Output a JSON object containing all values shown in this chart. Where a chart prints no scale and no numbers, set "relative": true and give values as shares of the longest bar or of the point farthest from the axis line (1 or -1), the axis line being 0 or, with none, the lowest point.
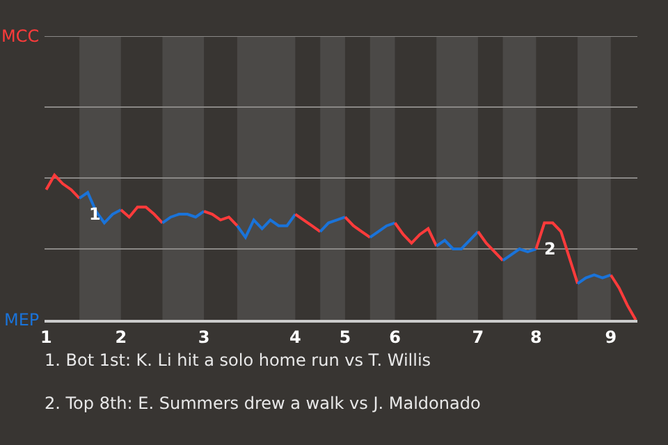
{
  "chart_data": {
    "type": "line",
    "relative": true,
    "categories": [
      "1",
      null,
      null,
      null,
      null,
      null,
      null,
      null,
      null,
      "2",
      null,
      null,
      null,
      null,
      null,
      null,
      null,
      null,
      null,
      "3",
      null,
      null,
      null,
      null,
      null,
      null,
      null,
      null,
      null,
      null,
      "4",
      null,
      null,
      null,
      null,
      null,
      "5",
      null,
      null,
      null,
      null,
      null,
      "6",
      null,
      null,
      null,
      null,
      null,
      null,
      null,
      null,
      null,
      "7",
      null,
      null,
      null,
      null,
      null,
      null,
      "8",
      null,
      null,
      null,
      null,
      null,
      null,
      null,
      null,
      "9",
      null,
      null,
      null
    ],
    "marker": "none",
    "ref_lines": [
      {
        "axis": "y",
        "value": 0.49,
        "color": "#8a8886"
      },
      {
        "axis": "y",
        "value": 0.98,
        "color": "#8a8886"
      },
      {
        "axis": "y",
        "value": 1.47,
        "color": "#8a8886"
      },
      {
        "axis": "y",
        "value": 1.96,
        "color": "#8a8886"
      }
    ],
    "line_style": "solid",
    "series": [
      {
        "color": "#ff3b3b",
        "values": [
          0.9,
          1,
          0.94,
          0.9,
          0.84,
          null,
          null,
          null,
          null,
          null,
          null,
          null,
          null,
          null,
          null,
          null,
          null,
          null,
          null,
          null,
          null,
          null,
          null,
          null,
          null,
          null,
          null,
          null,
          null,
          null,
          null,
          null,
          null,
          null,
          null,
          null,
          null,
          null,
          null,
          null,
          null,
          null,
          null,
          null,
          null,
          null,
          null,
          null,
          null,
          null,
          null,
          null,
          null,
          null,
          null,
          null,
          null,
          null,
          null,
          null,
          null,
          null,
          null,
          null,
          null,
          null,
          null,
          null,
          null,
          null,
          null,
          null
        ]
      },
      {
        "color": "#1a73d9",
        "values": [
          null,
          null,
          null,
          null,
          0.84,
          0.88,
          0.75,
          0.67,
          0.73,
          0.76,
          null,
          null,
          null,
          null,
          null,
          null,
          null,
          null,
          null,
          null,
          null,
          null,
          null,
          null,
          null,
          null,
          null,
          null,
          null,
          null,
          null,
          null,
          null,
          null,
          null,
          null,
          null,
          null,
          null,
          null,
          null,
          null,
          null,
          null,
          null,
          null,
          null,
          null,
          null,
          null,
          null,
          null,
          null,
          null,
          null,
          null,
          null,
          null,
          null,
          null,
          null,
          null,
          null,
          null,
          null,
          null,
          null,
          null,
          null,
          null,
          null,
          null
        ]
      },
      {
        "color": "#ff3b3b",
        "values": [
          null,
          null,
          null,
          null,
          null,
          null,
          null,
          null,
          null,
          0.76,
          0.71,
          0.78,
          0.78,
          0.73,
          0.67,
          null,
          null,
          null,
          null,
          null,
          null,
          null,
          null,
          null,
          null,
          null,
          null,
          null,
          null,
          null,
          null,
          null,
          null,
          null,
          null,
          null,
          null,
          null,
          null,
          null,
          null,
          null,
          null,
          null,
          null,
          null,
          null,
          null,
          null,
          null,
          null,
          null,
          null,
          null,
          null,
          null,
          null,
          null,
          null,
          null,
          null,
          null,
          null,
          null,
          null,
          null,
          null,
          null,
          null,
          null,
          null,
          null
        ]
      },
      {
        "color": "#1a73d9",
        "values": [
          null,
          null,
          null,
          null,
          null,
          null,
          null,
          null,
          null,
          null,
          null,
          null,
          null,
          null,
          0.67,
          0.71,
          0.73,
          0.73,
          0.71,
          0.75,
          null,
          null,
          null,
          null,
          null,
          null,
          null,
          null,
          null,
          null,
          null,
          null,
          null,
          null,
          null,
          null,
          null,
          null,
          null,
          null,
          null,
          null,
          null,
          null,
          null,
          null,
          null,
          null,
          null,
          null,
          null,
          null,
          null,
          null,
          null,
          null,
          null,
          null,
          null,
          null,
          null,
          null,
          null,
          null,
          null,
          null,
          null,
          null,
          null,
          null,
          null,
          null
        ]
      },
      {
        "color": "#ff3b3b",
        "values": [
          null,
          null,
          null,
          null,
          null,
          null,
          null,
          null,
          null,
          null,
          null,
          null,
          null,
          null,
          null,
          null,
          null,
          null,
          null,
          0.75,
          0.73,
          0.69,
          0.71,
          0.65,
          null,
          null,
          null,
          null,
          null,
          null,
          null,
          null,
          null,
          null,
          null,
          null,
          null,
          null,
          null,
          null,
          null,
          null,
          null,
          null,
          null,
          null,
          null,
          null,
          null,
          null,
          null,
          null,
          null,
          null,
          null,
          null,
          null,
          null,
          null,
          null,
          null,
          null,
          null,
          null,
          null,
          null,
          null,
          null,
          null,
          null,
          null,
          null
        ]
      },
      {
        "color": "#1a73d9",
        "values": [
          null,
          null,
          null,
          null,
          null,
          null,
          null,
          null,
          null,
          null,
          null,
          null,
          null,
          null,
          null,
          null,
          null,
          null,
          null,
          null,
          null,
          null,
          null,
          0.65,
          0.57,
          0.69,
          0.63,
          0.69,
          0.65,
          0.65,
          0.73,
          null,
          null,
          null,
          null,
          null,
          null,
          null,
          null,
          null,
          null,
          null,
          null,
          null,
          null,
          null,
          null,
          null,
          null,
          null,
          null,
          null,
          null,
          null,
          null,
          null,
          null,
          null,
          null,
          null,
          null,
          null,
          null,
          null,
          null,
          null,
          null,
          null,
          null,
          null,
          null,
          null
        ]
      },
      {
        "color": "#ff3b3b",
        "values": [
          null,
          null,
          null,
          null,
          null,
          null,
          null,
          null,
          null,
          null,
          null,
          null,
          null,
          null,
          null,
          null,
          null,
          null,
          null,
          null,
          null,
          null,
          null,
          null,
          null,
          null,
          null,
          null,
          null,
          null,
          0.73,
          0.69,
          0.65,
          0.61,
          null,
          null,
          null,
          null,
          null,
          null,
          null,
          null,
          null,
          null,
          null,
          null,
          null,
          null,
          null,
          null,
          null,
          null,
          null,
          null,
          null,
          null,
          null,
          null,
          null,
          null,
          null,
          null,
          null,
          null,
          null,
          null,
          null,
          null,
          null,
          null,
          null,
          null
        ]
      },
      {
        "color": "#1a73d9",
        "values": [
          null,
          null,
          null,
          null,
          null,
          null,
          null,
          null,
          null,
          null,
          null,
          null,
          null,
          null,
          null,
          null,
          null,
          null,
          null,
          null,
          null,
          null,
          null,
          null,
          null,
          null,
          null,
          null,
          null,
          null,
          null,
          null,
          null,
          0.61,
          0.67,
          0.69,
          0.71,
          null,
          null,
          null,
          null,
          null,
          null,
          null,
          null,
          null,
          null,
          null,
          null,
          null,
          null,
          null,
          null,
          null,
          null,
          null,
          null,
          null,
          null,
          null,
          null,
          null,
          null,
          null,
          null,
          null,
          null,
          null,
          null,
          null,
          null,
          null
        ]
      },
      {
        "color": "#ff3b3b",
        "values": [
          null,
          null,
          null,
          null,
          null,
          null,
          null,
          null,
          null,
          null,
          null,
          null,
          null,
          null,
          null,
          null,
          null,
          null,
          null,
          null,
          null,
          null,
          null,
          null,
          null,
          null,
          null,
          null,
          null,
          null,
          null,
          null,
          null,
          null,
          null,
          null,
          0.71,
          0.65,
          0.61,
          0.57,
          null,
          null,
          null,
          null,
          null,
          null,
          null,
          null,
          null,
          null,
          null,
          null,
          null,
          null,
          null,
          null,
          null,
          null,
          null,
          null,
          null,
          null,
          null,
          null,
          null,
          null,
          null,
          null,
          null,
          null,
          null,
          null
        ]
      },
      {
        "color": "#1a73d9",
        "values": [
          null,
          null,
          null,
          null,
          null,
          null,
          null,
          null,
          null,
          null,
          null,
          null,
          null,
          null,
          null,
          null,
          null,
          null,
          null,
          null,
          null,
          null,
          null,
          null,
          null,
          null,
          null,
          null,
          null,
          null,
          null,
          null,
          null,
          null,
          null,
          null,
          null,
          null,
          null,
          0.57,
          0.61,
          0.65,
          0.67,
          null,
          null,
          null,
          null,
          null,
          null,
          null,
          null,
          null,
          null,
          null,
          null,
          null,
          null,
          null,
          null,
          null,
          null,
          null,
          null,
          null,
          null,
          null,
          null,
          null,
          null,
          null,
          null,
          null
        ]
      },
      {
        "color": "#ff3b3b",
        "values": [
          null,
          null,
          null,
          null,
          null,
          null,
          null,
          null,
          null,
          null,
          null,
          null,
          null,
          null,
          null,
          null,
          null,
          null,
          null,
          null,
          null,
          null,
          null,
          null,
          null,
          null,
          null,
          null,
          null,
          null,
          null,
          null,
          null,
          null,
          null,
          null,
          null,
          null,
          null,
          null,
          null,
          null,
          0.67,
          0.59,
          0.53,
          0.59,
          0.63,
          0.51,
          null,
          null,
          null,
          null,
          null,
          null,
          null,
          null,
          null,
          null,
          null,
          null,
          null,
          null,
          null,
          null,
          null,
          null,
          null,
          null,
          null,
          null,
          null,
          null
        ]
      },
      {
        "color": "#1a73d9",
        "values": [
          null,
          null,
          null,
          null,
          null,
          null,
          null,
          null,
          null,
          null,
          null,
          null,
          null,
          null,
          null,
          null,
          null,
          null,
          null,
          null,
          null,
          null,
          null,
          null,
          null,
          null,
          null,
          null,
          null,
          null,
          null,
          null,
          null,
          null,
          null,
          null,
          null,
          null,
          null,
          null,
          null,
          null,
          null,
          null,
          null,
          null,
          null,
          0.51,
          0.55,
          0.49,
          0.49,
          0.55,
          0.61,
          null,
          null,
          null,
          null,
          null,
          null,
          null,
          null,
          null,
          null,
          null,
          null,
          null,
          null,
          null,
          null,
          null,
          null,
          null
        ]
      },
      {
        "color": "#ff3b3b",
        "values": [
          null,
          null,
          null,
          null,
          null,
          null,
          null,
          null,
          null,
          null,
          null,
          null,
          null,
          null,
          null,
          null,
          null,
          null,
          null,
          null,
          null,
          null,
          null,
          null,
          null,
          null,
          null,
          null,
          null,
          null,
          null,
          null,
          null,
          null,
          null,
          null,
          null,
          null,
          null,
          null,
          null,
          null,
          null,
          null,
          null,
          null,
          null,
          null,
          null,
          null,
          null,
          null,
          0.61,
          0.53,
          0.47,
          0.41,
          null,
          null,
          null,
          null,
          null,
          null,
          null,
          null,
          null,
          null,
          null,
          null,
          null,
          null,
          null,
          null
        ]
      },
      {
        "color": "#1a73d9",
        "values": [
          null,
          null,
          null,
          null,
          null,
          null,
          null,
          null,
          null,
          null,
          null,
          null,
          null,
          null,
          null,
          null,
          null,
          null,
          null,
          null,
          null,
          null,
          null,
          null,
          null,
          null,
          null,
          null,
          null,
          null,
          null,
          null,
          null,
          null,
          null,
          null,
          null,
          null,
          null,
          null,
          null,
          null,
          null,
          null,
          null,
          null,
          null,
          null,
          null,
          null,
          null,
          null,
          null,
          null,
          null,
          0.41,
          0.45,
          0.49,
          0.47,
          0.49,
          null,
          null,
          null,
          null,
          null,
          null,
          null,
          null,
          null,
          null,
          null,
          null
        ]
      },
      {
        "color": "#ff3b3b",
        "values": [
          null,
          null,
          null,
          null,
          null,
          null,
          null,
          null,
          null,
          null,
          null,
          null,
          null,
          null,
          null,
          null,
          null,
          null,
          null,
          null,
          null,
          null,
          null,
          null,
          null,
          null,
          null,
          null,
          null,
          null,
          null,
          null,
          null,
          null,
          null,
          null,
          null,
          null,
          null,
          null,
          null,
          null,
          null,
          null,
          null,
          null,
          null,
          null,
          null,
          null,
          null,
          null,
          null,
          null,
          null,
          null,
          null,
          null,
          null,
          0.49,
          0.67,
          0.67,
          0.61,
          0.43,
          0.25,
          null,
          null,
          null,
          null,
          null,
          null,
          null
        ]
      },
      {
        "color": "#1a73d9",
        "values": [
          null,
          null,
          null,
          null,
          null,
          null,
          null,
          null,
          null,
          null,
          null,
          null,
          null,
          null,
          null,
          null,
          null,
          null,
          null,
          null,
          null,
          null,
          null,
          null,
          null,
          null,
          null,
          null,
          null,
          null,
          null,
          null,
          null,
          null,
          null,
          null,
          null,
          null,
          null,
          null,
          null,
          null,
          null,
          null,
          null,
          null,
          null,
          null,
          null,
          null,
          null,
          null,
          null,
          null,
          null,
          null,
          null,
          null,
          null,
          null,
          null,
          null,
          null,
          null,
          0.25,
          0.29,
          0.31,
          0.29,
          0.31,
          null,
          null,
          null
        ]
      },
      {
        "color": "#ff3b3b",
        "values": [
          null,
          null,
          null,
          null,
          null,
          null,
          null,
          null,
          null,
          null,
          null,
          null,
          null,
          null,
          null,
          null,
          null,
          null,
          null,
          null,
          null,
          null,
          null,
          null,
          null,
          null,
          null,
          null,
          null,
          null,
          null,
          null,
          null,
          null,
          null,
          null,
          null,
          null,
          null,
          null,
          null,
          null,
          null,
          null,
          null,
          null,
          null,
          null,
          null,
          null,
          null,
          null,
          null,
          null,
          null,
          null,
          null,
          null,
          null,
          null,
          null,
          null,
          null,
          null,
          null,
          null,
          null,
          null,
          0.31,
          0.22,
          0.1,
          0
        ]
      }
    ],
    "annotations": [
      "MCC",
      "MEP",
      "1",
      {
        "text": "2",
        "x": "8",
        "y": 0.49
      },
      "1. Bot 1st: K. Li hit a solo home run vs T. Willis",
      "2. Top 8th: E. Summers drew a walk vs J. Maldonado"
    ]
  }
}
